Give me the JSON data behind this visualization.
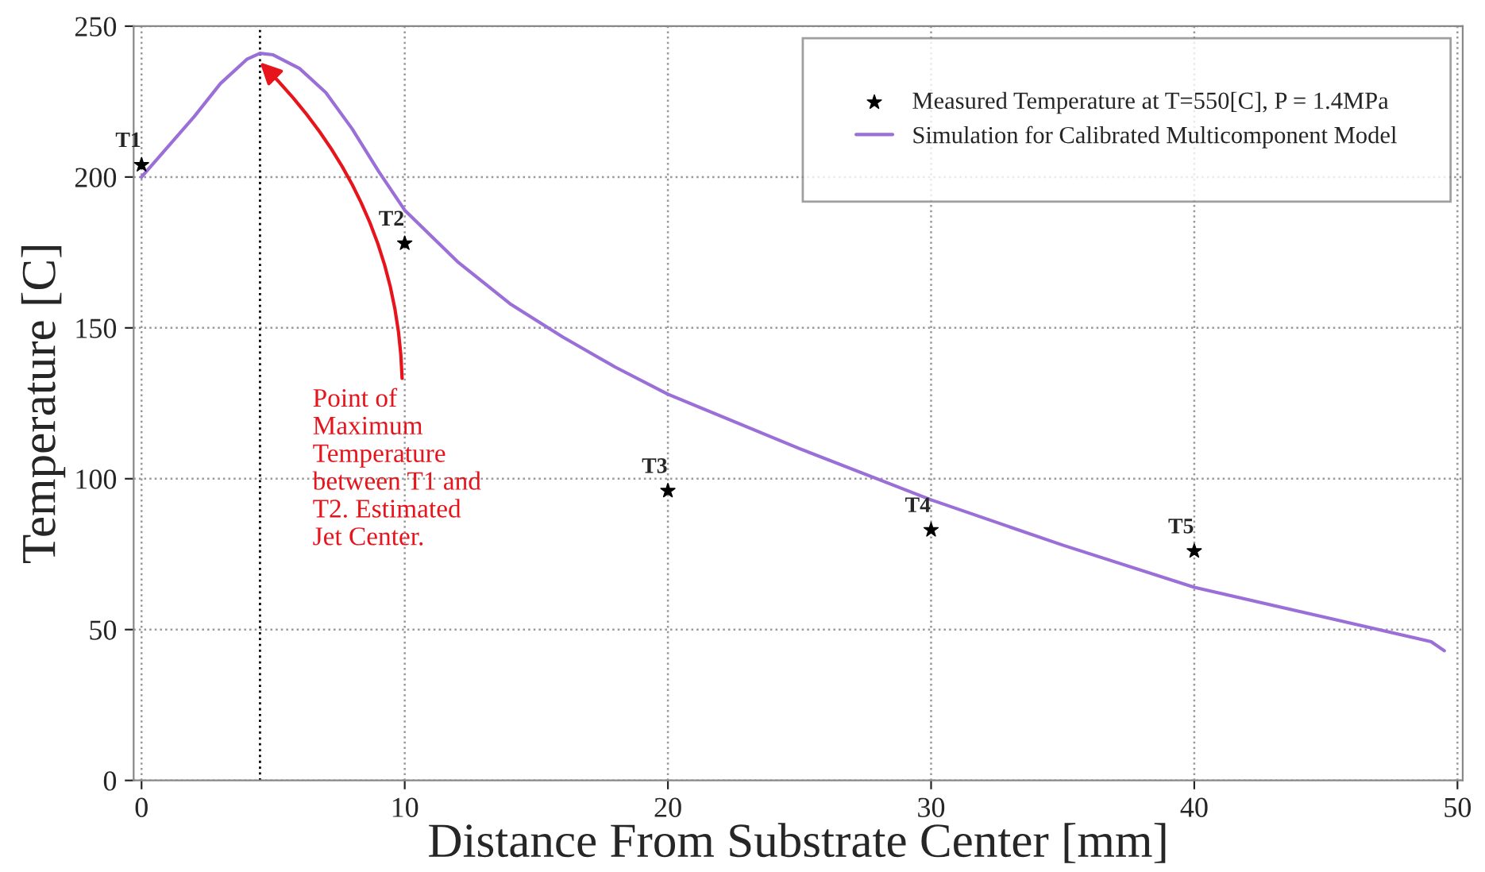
{
  "chart_data": {
    "type": "scatter",
    "xlabel": "Distance From Substrate Center [mm]",
    "ylabel": "Temperature [C]",
    "xlim": [
      -0.3,
      50.2
    ],
    "ylim": [
      0,
      250
    ],
    "xticks": [
      0,
      10,
      20,
      30,
      40,
      50
    ],
    "yticks": [
      0,
      50,
      100,
      150,
      200,
      250
    ],
    "grid": true,
    "legend": "top right",
    "series": [
      {
        "name": "Measured Temperature at T=550[C], P = 1.4MPa",
        "color": "#000000",
        "marker": "star",
        "x": [
          0,
          10,
          20,
          30,
          40
        ],
        "values": [
          204,
          178,
          96,
          83,
          76
        ]
      },
      {
        "name": "Simulation for Calibrated Multicomponent Model",
        "type": "line",
        "color": "#9b6fd8",
        "marker": "none",
        "line_style": "solid",
        "x": [
          0,
          1,
          2,
          3,
          4,
          4.5,
          5,
          6,
          7,
          8,
          9,
          10,
          12,
          14,
          16,
          18,
          20,
          25,
          30,
          35,
          40,
          45,
          49,
          49.5
        ],
        "values": [
          200,
          210,
          220,
          231,
          239,
          241,
          240.5,
          236,
          228,
          216,
          202,
          189,
          172,
          158,
          147,
          137,
          128,
          110,
          93,
          78,
          64,
          54,
          46,
          43
        ]
      }
    ],
    "ref_lines": [
      {
        "axis": "x",
        "value": 4.5,
        "color": "#000000",
        "line_style": "dotted"
      }
    ],
    "annotations": [
      {
        "text": "T1",
        "x": 0,
        "y": 204
      },
      {
        "text": "T2",
        "x": 10,
        "y": 178
      },
      {
        "text": "T3",
        "x": 20,
        "y": 96
      },
      {
        "text": "T4",
        "x": 30,
        "y": 83
      },
      {
        "text": "T5",
        "x": 40,
        "y": 76
      },
      {
        "text": "Point of\nMaximum\nTemperature\nbetween T1 and\nT2. Estimated\nJet Center.",
        "x": 4.5,
        "y": 238
      }
    ]
  }
}
